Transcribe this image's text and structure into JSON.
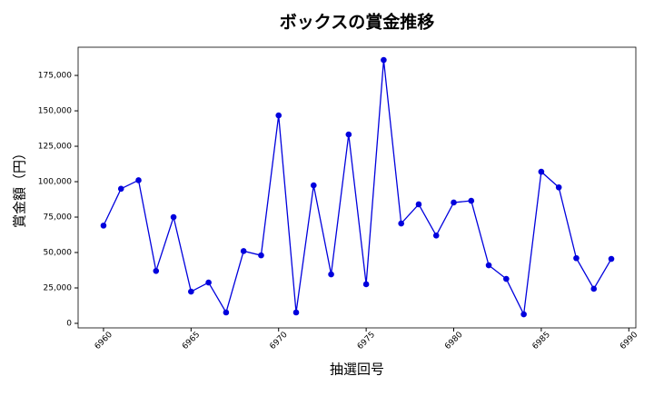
{
  "chart_data": {
    "type": "line",
    "title": "ボックスの賞金推移",
    "x_label": "抽選回号",
    "y_label": "賞金額（円）",
    "x": [
      6960,
      6961,
      6962,
      6963,
      6964,
      6965,
      6966,
      6967,
      6968,
      6969,
      6970,
      6971,
      6972,
      6973,
      6974,
      6975,
      6976,
      6977,
      6978,
      6979,
      6980,
      6981,
      6982,
      6983,
      6984,
      6985,
      6986,
      6987,
      6988,
      6989
    ],
    "series": [
      {
        "color": "#0000dd",
        "values": [
          69000,
          95000,
          101000,
          37000,
          75000,
          22400,
          28800,
          7700,
          51000,
          48000,
          146800,
          7700,
          97400,
          34600,
          133300,
          27600,
          185900,
          70500,
          84000,
          62000,
          85300,
          86500,
          41000,
          31400,
          6400,
          107000,
          96000,
          46000,
          24400,
          45500
        ]
      }
    ],
    "xlim": [
      6958.55,
      6990.4
    ],
    "ylim": [
      -3200,
      194900
    ],
    "xticks": [
      6960,
      6965,
      6970,
      6975,
      6980,
      6985,
      6990
    ],
    "yticks": [
      0,
      {
        "value": 25000,
        "label": "25,000"
      },
      {
        "value": 50000,
        "label": "50,000"
      },
      {
        "value": 75000,
        "label": "75,000"
      },
      {
        "value": 100000,
        "label": "100,000"
      },
      {
        "value": 125000,
        "label": "125,000"
      },
      {
        "value": 150000,
        "label": "150,000"
      },
      {
        "value": 175000,
        "label": "175,000"
      }
    ],
    "grid": true
  }
}
